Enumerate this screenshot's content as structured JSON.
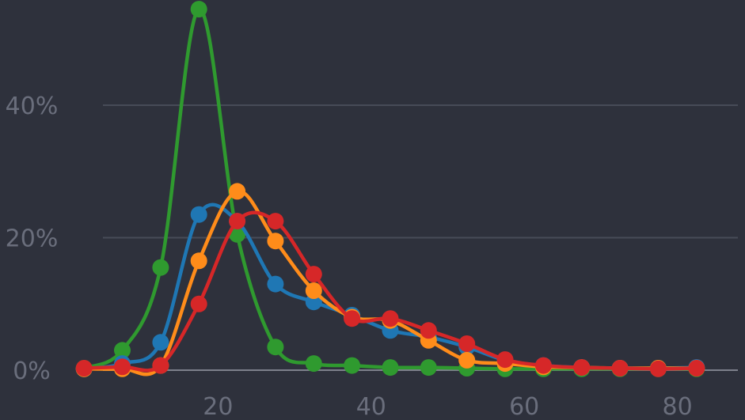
{
  "chart_data": {
    "type": "line",
    "title": "",
    "xlabel": "",
    "ylabel": "",
    "xlim": [
      2,
      85
    ],
    "ylim": [
      0,
      55
    ],
    "x_ticks": [
      20,
      40,
      60,
      80
    ],
    "y_ticks": [
      0,
      20,
      40
    ],
    "x_tick_labels": [
      "20",
      "40",
      "60",
      "80"
    ],
    "y_tick_labels": [
      "0%",
      "20%",
      "40%"
    ],
    "grid": true,
    "x": [
      2.5,
      7.5,
      12.5,
      17.5,
      22.5,
      27.5,
      32.5,
      37.5,
      42.5,
      47.5,
      52.5,
      57.5,
      62.5,
      67.5,
      72.5,
      77.5,
      82.5
    ],
    "series": [
      {
        "color": "#2f9a2f",
        "values": [
          0.3,
          3.0,
          15.5,
          54.5,
          20.5,
          3.5,
          1.0,
          0.7,
          0.4,
          0.4,
          0.3,
          0.2,
          0.2,
          0.2,
          0.2,
          0.2,
          0.2
        ]
      },
      {
        "color": "#1f77b4",
        "values": [
          0.2,
          1.0,
          4.2,
          23.5,
          22.5,
          13.0,
          10.3,
          8.3,
          6.0,
          5.0,
          3.5,
          1.5,
          0.7,
          0.4,
          0.3,
          0.3,
          0.4
        ]
      },
      {
        "color": "#ff8c1a",
        "values": [
          0.2,
          0.2,
          0.7,
          16.5,
          27.0,
          19.5,
          12.0,
          8.0,
          7.5,
          4.5,
          1.5,
          1.0,
          0.5,
          0.4,
          0.3,
          0.3,
          0.3
        ]
      },
      {
        "color": "#d62728",
        "values": [
          0.3,
          0.5,
          0.7,
          10.0,
          22.5,
          22.5,
          14.5,
          7.8,
          7.8,
          6.0,
          4.0,
          1.6,
          0.7,
          0.4,
          0.3,
          0.2,
          0.3
        ]
      }
    ]
  }
}
